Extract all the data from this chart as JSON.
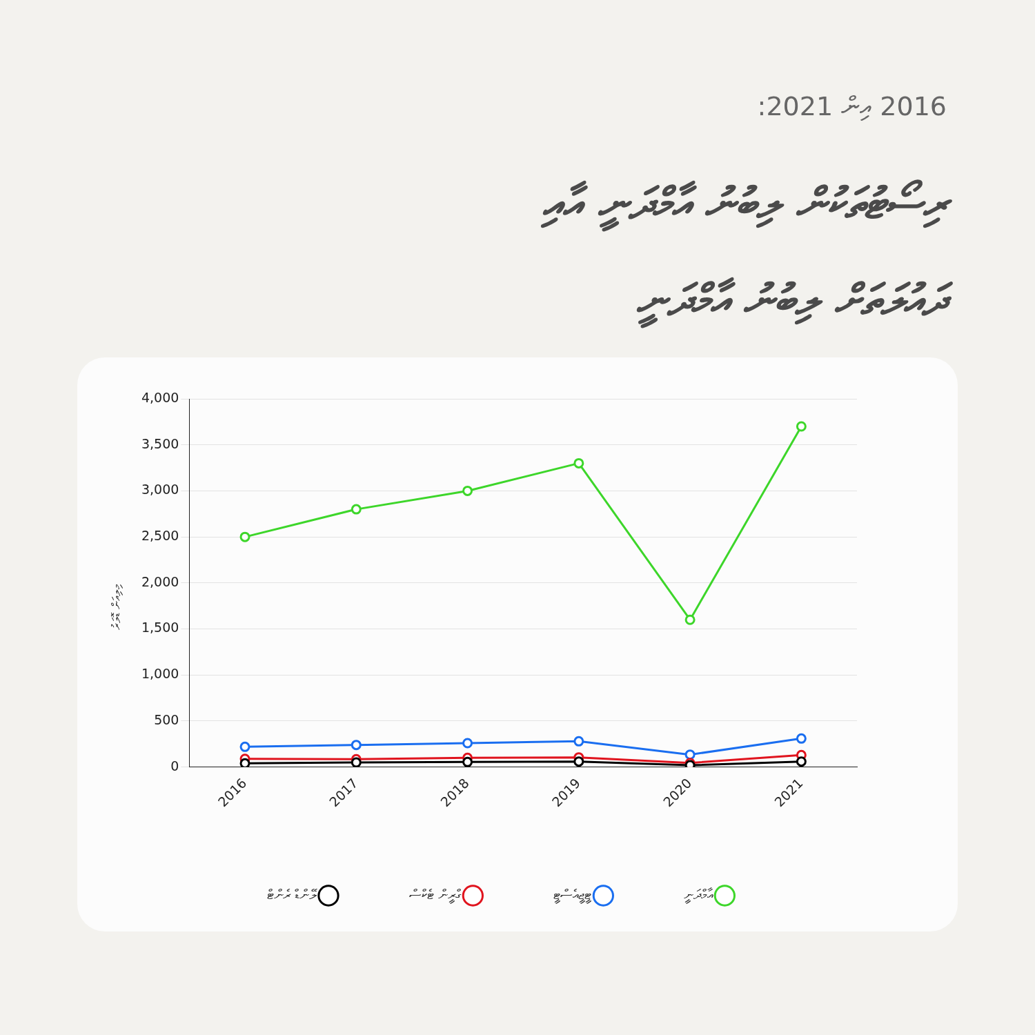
{
  "chart_data": {
    "type": "line",
    "subtitle": "2016 އިން 2021:",
    "title": "ރިސޯޓުތަކުން ލިބުނު އާމްދަނީ އާއި ދައުލަތަށް ލިބުނު އާމްދަނީ",
    "ylabel": "މިލިއަން ޑޮލަރު",
    "categories": [
      "2016",
      "2017",
      "2018",
      "2019",
      "2020",
      "2021"
    ],
    "series": [
      {
        "name": "އާމްދަނީ",
        "color": "#3dd62a",
        "values": [
          2500,
          2800,
          3000,
          3300,
          1600,
          3700
        ]
      },
      {
        "name": "ޓީޖީއެސްޓީ",
        "color": "#1a6ef0",
        "values": [
          220,
          240,
          260,
          280,
          135,
          310
        ]
      },
      {
        "name": "ގްރީން ޓެކްސް",
        "color": "#e0141e",
        "values": [
          90,
          85,
          100,
          105,
          45,
          130
        ]
      },
      {
        "name": "ލޭންޑް ރެންޓް",
        "color": "#000000",
        "values": [
          40,
          50,
          55,
          60,
          20,
          60
        ]
      }
    ],
    "ylim": [
      0,
      4000
    ],
    "yticks": [
      {
        "value": 0,
        "label": "0"
      },
      {
        "value": 500,
        "label": "500"
      },
      {
        "value": 1000,
        "label": "1,000"
      },
      {
        "value": 1500,
        "label": "1,500"
      },
      {
        "value": 2000,
        "label": "2,000"
      },
      {
        "value": 2500,
        "label": "2,500"
      },
      {
        "value": 3000,
        "label": "3,000"
      },
      {
        "value": 3500,
        "label": "3,500"
      },
      {
        "value": 4000,
        "label": "4,000"
      }
    ],
    "grid": "y",
    "legend": "bottom",
    "marker": "circle",
    "line_style": "solid"
  }
}
